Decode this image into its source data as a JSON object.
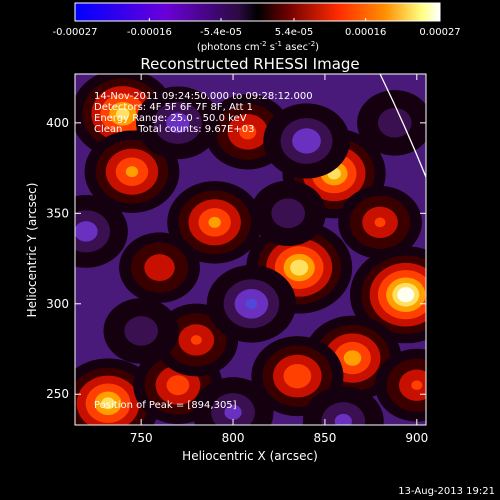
{
  "chart_data": {
    "type": "heatmap",
    "title": "Reconstructed RHESSI Image",
    "colorbar": {
      "ticks": [
        "-0.00027",
        "-0.00016",
        "-5.4e-05",
        "5.4e-05",
        "0.00016",
        "0.00027"
      ],
      "tick_values": [
        -0.00027,
        -0.00016,
        -5.4e-05,
        5.4e-05,
        0.00016,
        0.00027
      ],
      "range": [
        -0.00027,
        0.00027
      ],
      "units_text": "(photons cm",
      "units_exp1": "-2",
      "units_mid": " s",
      "units_exp2": "-1",
      "units_mid2": " asec",
      "units_exp3": "-2",
      "units_close": ")"
    },
    "xlabel": "Heliocentric X (arcsec)",
    "ylabel": "Heliocentric Y (arcsec)",
    "xlim": [
      714,
      905
    ],
    "ylim": [
      233,
      427
    ],
    "x_ticks": [
      750,
      800,
      850,
      900
    ],
    "y_ticks": [
      250,
      300,
      350,
      400
    ],
    "annotations": [
      "14-Nov-2011 09:24:50.000 to 09:28:12.000",
      "Detectors: 4F 5F 6F 7F 8F, Att 1",
      "Energy Range: 25.0 - 50.0 keV",
      "Clean     Total counts: 9.67E+03"
    ],
    "peak_label": "Position of Peak = [894,305]",
    "peak": [
      894,
      305
    ],
    "limb_curve": [
      [
        880,
        427
      ],
      [
        893,
        400
      ],
      [
        905,
        370
      ]
    ],
    "blobs": [
      {
        "x": 894,
        "y": 305,
        "v": 1.0
      },
      {
        "x": 836,
        "y": 320,
        "v": 0.9
      },
      {
        "x": 732,
        "y": 245,
        "v": 0.85
      },
      {
        "x": 740,
        "y": 405,
        "v": 0.85
      },
      {
        "x": 855,
        "y": 372,
        "v": 0.85
      },
      {
        "x": 745,
        "y": 373,
        "v": 0.7
      },
      {
        "x": 790,
        "y": 345,
        "v": 0.7
      },
      {
        "x": 865,
        "y": 270,
        "v": 0.75
      },
      {
        "x": 835,
        "y": 260,
        "v": 0.65
      },
      {
        "x": 770,
        "y": 255,
        "v": 0.6
      },
      {
        "x": 808,
        "y": 395,
        "v": 0.55
      },
      {
        "x": 880,
        "y": 345,
        "v": 0.5
      },
      {
        "x": 780,
        "y": 280,
        "v": 0.5
      },
      {
        "x": 900,
        "y": 255,
        "v": 0.5
      },
      {
        "x": 760,
        "y": 320,
        "v": 0.45
      },
      {
        "x": 810,
        "y": 300,
        "v": -0.6
      },
      {
        "x": 840,
        "y": 390,
        "v": -0.55
      },
      {
        "x": 770,
        "y": 400,
        "v": -0.5
      },
      {
        "x": 720,
        "y": 340,
        "v": -0.5
      },
      {
        "x": 860,
        "y": 235,
        "v": -0.45
      },
      {
        "x": 800,
        "y": 240,
        "v": -0.45
      },
      {
        "x": 888,
        "y": 400,
        "v": -0.35
      },
      {
        "x": 830,
        "y": 350,
        "v": -0.35
      },
      {
        "x": 750,
        "y": 285,
        "v": -0.35
      }
    ]
  },
  "footer_timestamp": "13-Aug-2013 19:21"
}
